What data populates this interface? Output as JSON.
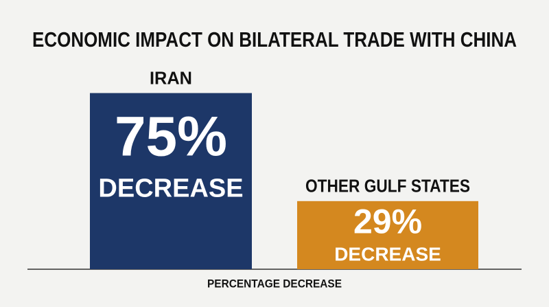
{
  "chart_data": {
    "type": "bar",
    "title": "ECONOMIC IMPACT ON BILATERAL TRADE WITH CHINA",
    "categories": [
      "IRAN",
      "OTHER GULF STATES"
    ],
    "values": [
      75,
      29
    ],
    "value_labels": [
      "75%",
      "29%"
    ],
    "value_label_notes": [
      "DECREASE",
      "DECREASE"
    ],
    "colors": [
      "#1d3768",
      "#d4881f"
    ],
    "xlabel": "PERCENTAGE DECREASE"
  }
}
